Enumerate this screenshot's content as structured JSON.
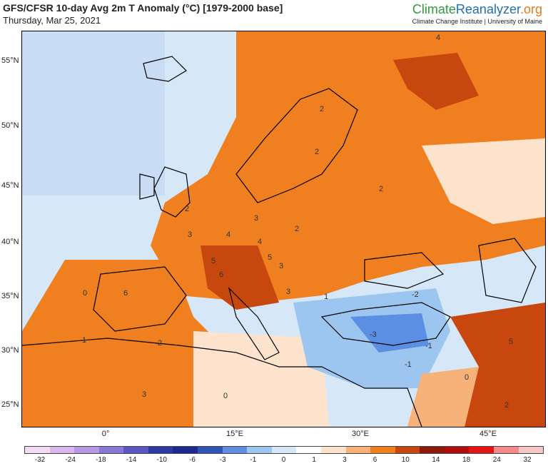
{
  "header": {
    "title": "GFS/CFSR 10-day Avg 2m T Anomaly (°C) [1979-2000 base]",
    "date": "Thursday, Mar 25, 2021",
    "brand_part1": "Climate",
    "brand_part2": "Reanalyzer",
    "brand_part3": ".org",
    "brand_sub": "Climate Change Institute | University of Maine"
  },
  "map": {
    "lat_labels": [
      "55°N",
      "50°N",
      "45°N",
      "40°N",
      "35°N",
      "30°N",
      "25°N"
    ],
    "lon_labels": [
      "0°",
      "15°E",
      "30°E",
      "45°E"
    ],
    "contour_labels": [
      "2",
      "2",
      "2",
      "2",
      "3",
      "3",
      "4",
      "4",
      "5",
      "5",
      "6",
      "6",
      "3",
      "3",
      "2",
      "1",
      "0",
      "-3",
      "-1",
      "-2",
      "-1",
      "5",
      "0",
      "0",
      "1",
      "2",
      "3",
      "4",
      "2"
    ],
    "colors": {
      "warm_strong": "#c7470e",
      "warm": "#f07f1f",
      "warm_light": "#f7b27a",
      "pale": "#fde3cc",
      "neutral": "#ffffff",
      "cool_light": "#d6e8f8",
      "cool": "#9cc6ef",
      "cool_strong": "#5b8fe3"
    }
  },
  "colorbar": {
    "labels": [
      "-32",
      "-24",
      "-18",
      "-14",
      "-10",
      "-6",
      "-3",
      "-1",
      "0",
      "1",
      "3",
      "6",
      "10",
      "14",
      "18",
      "24",
      "32"
    ],
    "colors": [
      "#f3dcf3",
      "#d9b6ec",
      "#b89ae4",
      "#8a78d6",
      "#5b56c4",
      "#2f3aa8",
      "#1b2a8c",
      "#2f55b8",
      "#5f8de0",
      "#9cc6ef",
      "#d6e8f8",
      "#ffffff",
      "#fde3cc",
      "#f7b27a",
      "#f07f1f",
      "#c7470e",
      "#8e1b08",
      "#b10d0d",
      "#e21414",
      "#f48a8a",
      "#f7c7c7"
    ]
  }
}
